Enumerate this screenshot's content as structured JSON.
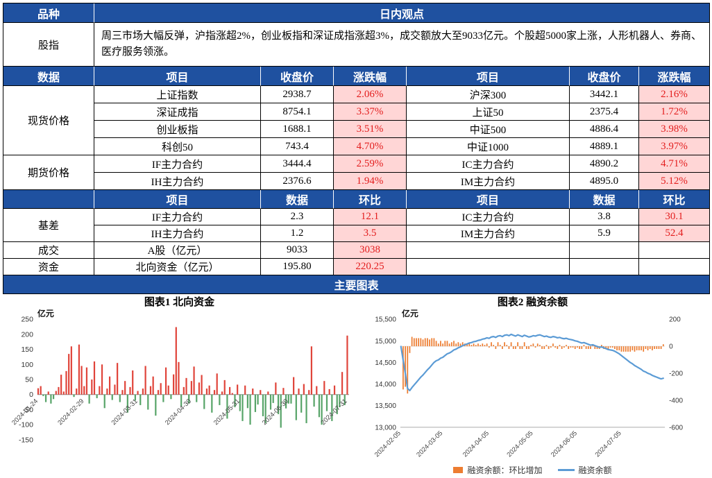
{
  "colors": {
    "header_blue": "#1f51a0",
    "pink_bg": "#ffd6d6",
    "red_text": "#e31d1d",
    "bar_red": "#e0443a",
    "bar_green": "#57a468",
    "bar_orange": "#ed7d31",
    "line_blue": "#5b9bd5"
  },
  "table": {
    "top": {
      "col1": "品种",
      "col2": "日内观点"
    },
    "viewpoint": {
      "label": "股指",
      "text": "周三市场大幅反弹，沪指涨超2%，创业板指和深证成指涨超3%，成交额放大至9033亿元。个股超5000家上涨，人形机器人、券商、医疗服务领涨。"
    },
    "header_price": [
      "数据",
      "项目",
      "收盘价",
      "涨跌幅",
      "项目",
      "收盘价",
      "涨跌幅"
    ],
    "groups": [
      {
        "label": "现货价格",
        "rows": [
          [
            "上证指数",
            "2938.7",
            "2.06%",
            "沪深300",
            "3442.1",
            "2.16%"
          ],
          [
            "深证成指",
            "8754.1",
            "3.37%",
            "上证50",
            "2375.4",
            "1.72%"
          ],
          [
            "创业板指",
            "1688.1",
            "3.51%",
            "中证500",
            "4886.4",
            "3.98%"
          ],
          [
            "科创50",
            "743.4",
            "4.70%",
            "中证1000",
            "4889.1",
            "3.97%"
          ]
        ]
      },
      {
        "label": "期货价格",
        "rows": [
          [
            "IF主力合约",
            "3444.4",
            "2.59%",
            "IC主力合约",
            "4890.2",
            "4.71%"
          ],
          [
            "IH主力合约",
            "2376.6",
            "1.94%",
            "IM主力合约",
            "4895.0",
            "5.12%"
          ]
        ]
      }
    ],
    "header_basis": [
      "",
      "项目",
      "数据",
      "环比",
      "项目",
      "数据",
      "环比"
    ],
    "basis_group": {
      "label": "基差",
      "rows": [
        [
          "IF主力合约",
          "2.3",
          "12.1",
          "IC主力合约",
          "3.8",
          "30.1"
        ],
        [
          "IH主力合约",
          "1.2",
          "3.5",
          "IM主力合约",
          "5.9",
          "52.4"
        ]
      ]
    },
    "volume_row": {
      "label": "成交",
      "item": "A股（亿元）",
      "value": "9033",
      "change": "3038"
    },
    "funds_row": {
      "label": "资金",
      "item": "北向资金（亿元）",
      "value": "195.80",
      "change": "220.25"
    },
    "charts_header": "主要图表"
  },
  "chart_data": [
    {
      "type": "bar",
      "title": "图表1 北向资金",
      "unit_label": "亿元",
      "ylabel": "亿元",
      "ylim": [
        -150,
        250
      ],
      "y_ticks": [
        250,
        200,
        150,
        100,
        50,
        0,
        -50,
        -100,
        -150
      ],
      "grid": false,
      "bar_color_positive": "#e0443a",
      "bar_color_negative": "#57a468",
      "x_ticks": [
        {
          "index": 0,
          "label": "2024-01-24"
        },
        {
          "index": 18,
          "label": "2024-02-29"
        },
        {
          "index": 39,
          "label": "2024-03-31"
        },
        {
          "index": 60,
          "label": "2024-04-30"
        },
        {
          "index": 79,
          "label": "2024-05-31"
        },
        {
          "index": 98,
          "label": "2024-06-30"
        },
        {
          "index": 121,
          "label": "2024-07-31"
        }
      ],
      "values": [
        21,
        28,
        -5,
        -25,
        10,
        -30,
        -15,
        12,
        25,
        66,
        10,
        78,
        135,
        160,
        -8,
        20,
        166,
        95,
        28,
        90,
        -30,
        50,
        110,
        -12,
        28,
        100,
        -45,
        20,
        60,
        -18,
        33,
        105,
        -25,
        15,
        45,
        -60,
        25,
        80,
        -20,
        12,
        -35,
        20,
        95,
        -50,
        28,
        60,
        -70,
        15,
        38,
        -25,
        90,
        30,
        -15,
        67,
        224,
        108,
        -40,
        25,
        55,
        -30,
        45,
        93,
        -25,
        40,
        65,
        -48,
        20,
        30,
        -60,
        15,
        70,
        -35,
        10,
        48,
        -80,
        25,
        5,
        -42,
        33,
        -55,
        -88,
        30,
        -45,
        -100,
        20,
        -58,
        -33,
        15,
        -72,
        -95,
        10,
        -50,
        -28,
        40,
        -65,
        -110,
        22,
        -46,
        -30,
        -30,
        58,
        -85,
        20,
        -60,
        35,
        -95,
        15,
        160,
        -40,
        28,
        -75,
        -100,
        45,
        -55,
        18,
        -88,
        30,
        -65,
        -42,
        75,
        -35,
        195.8
      ]
    },
    {
      "type": "bar+line",
      "title": "图表2 融资余额",
      "unit_label": "亿元",
      "left_ylim": [
        13000,
        15500
      ],
      "left_ticks": [
        "15,500",
        "15,000",
        "14,500",
        "14,000",
        "13,500",
        "13,000"
      ],
      "right_ylim": [
        -600,
        200
      ],
      "right_ticks": [
        "200",
        "0",
        "-200",
        "-400",
        "-600"
      ],
      "grid": false,
      "bar_color": "#ed7d31",
      "line_color": "#5b9bd5",
      "bar_name": "融资余额：环比增加",
      "line_name": "融资余额",
      "bar_values_note": "环比增加 bars are the day-over-day difference of line_values (right axis)",
      "x_ticks": [
        {
          "index": 0,
          "label": "2024-02-05"
        },
        {
          "index": 19,
          "label": "2024-03-05"
        },
        {
          "index": 40,
          "label": "2024-04-05"
        },
        {
          "index": 60,
          "label": "2024-05-05"
        },
        {
          "index": 80,
          "label": "2024-06-05"
        },
        {
          "index": 100,
          "label": "2024-07-05"
        }
      ],
      "line_values": [
        14870,
        14550,
        14250,
        13900,
        13850,
        13920,
        13980,
        14040,
        14100,
        14160,
        14210,
        14270,
        14330,
        14380,
        14440,
        14500,
        14540,
        14560,
        14600,
        14620,
        14660,
        14700,
        14720,
        14750,
        14790,
        14810,
        14840,
        14860,
        14890,
        14910,
        14930,
        14950,
        14960,
        14980,
        14990,
        15010,
        15020,
        15040,
        15050,
        15070,
        15060,
        15090,
        15100,
        15080,
        15110,
        15120,
        15100,
        15130,
        15140,
        15120,
        15150,
        15130,
        15110,
        15140,
        15120,
        15100,
        15130,
        15110,
        15090,
        15100,
        15120,
        15110,
        15130,
        15140,
        15120,
        15100,
        15110,
        15090,
        15080,
        15100,
        15090,
        15070,
        15080,
        15060,
        15050,
        15060,
        15040,
        15030,
        15020,
        15000,
        14990,
        14970,
        14950,
        14960,
        14940,
        14920,
        14900,
        14910,
        14890,
        14870,
        14850,
        14860,
        14840,
        14820,
        14800,
        14790,
        14780,
        14760,
        14730,
        14700,
        14660,
        14620,
        14580,
        14540,
        14500,
        14470,
        14430,
        14400,
        14370,
        14340,
        14300,
        14280,
        14250,
        14230,
        14200,
        14180,
        14160,
        14140,
        14120,
        14135
      ]
    }
  ]
}
